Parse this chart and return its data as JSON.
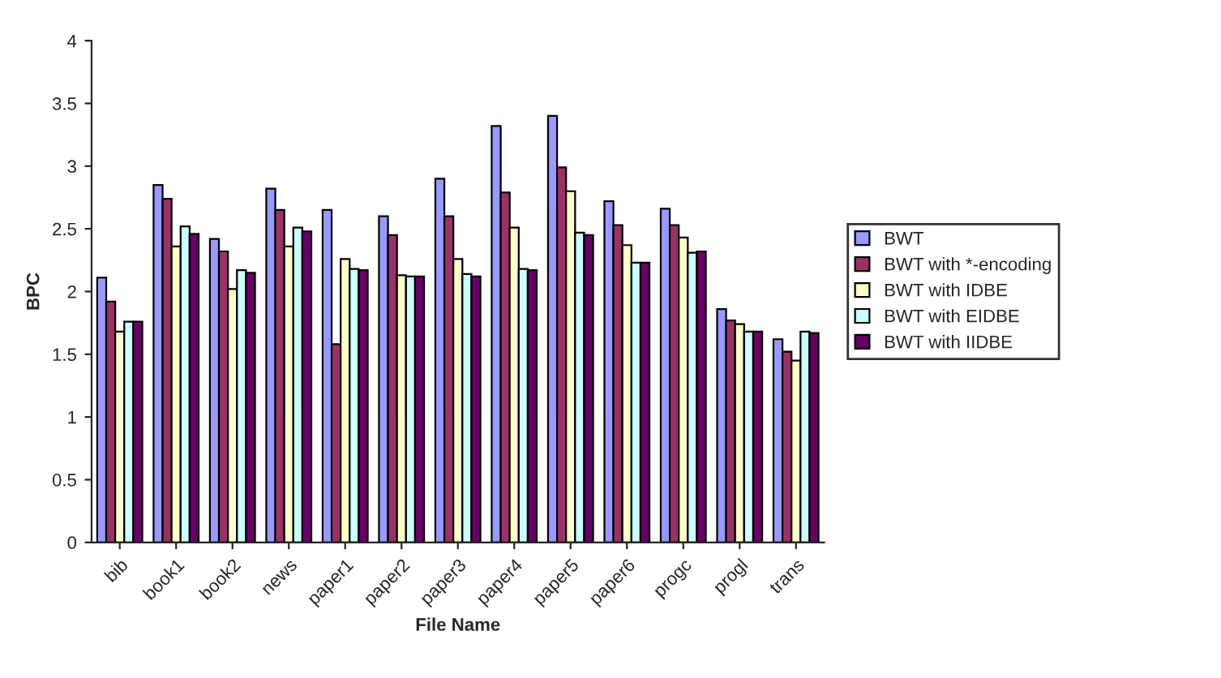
{
  "chart_data": {
    "type": "bar",
    "xlabel": "File Name",
    "ylabel": "BPC",
    "categories": [
      "bib",
      "book1",
      "book2",
      "news",
      "paper1",
      "paper2",
      "paper3",
      "paper4",
      "paper5",
      "paper6",
      "progc",
      "progl",
      "trans"
    ],
    "series": [
      {
        "name": "BWT",
        "color": "#9999ff",
        "values": [
          2.11,
          2.85,
          2.42,
          2.82,
          2.65,
          2.6,
          2.9,
          3.32,
          3.4,
          2.72,
          2.66,
          1.86,
          1.62
        ]
      },
      {
        "name": "BWT with *-encoding",
        "color": "#993366",
        "values": [
          1.92,
          2.74,
          2.32,
          2.65,
          1.58,
          2.45,
          2.6,
          2.79,
          2.99,
          2.53,
          2.53,
          1.77,
          1.52
        ]
      },
      {
        "name": "BWT with IDBE",
        "color": "#ffffcc",
        "values": [
          1.68,
          2.36,
          2.02,
          2.36,
          2.26,
          2.13,
          2.26,
          2.51,
          2.8,
          2.37,
          2.43,
          1.74,
          1.45
        ]
      },
      {
        "name": "BWT with EIDBE",
        "color": "#ccffff",
        "values": [
          1.76,
          2.52,
          2.17,
          2.51,
          2.18,
          2.12,
          2.14,
          2.18,
          2.47,
          2.23,
          2.31,
          1.68,
          1.68
        ]
      },
      {
        "name": "BWT with IIDBE",
        "color": "#660066",
        "values": [
          1.76,
          2.46,
          2.15,
          2.48,
          2.17,
          2.12,
          2.12,
          2.17,
          2.45,
          2.23,
          2.32,
          1.68,
          1.67
        ]
      }
    ],
    "ylim": [
      0,
      4
    ],
    "yticks": [
      0,
      0.5,
      1,
      1.5,
      2,
      2.5,
      3,
      3.5,
      4
    ],
    "grid": false,
    "legend": "right"
  }
}
